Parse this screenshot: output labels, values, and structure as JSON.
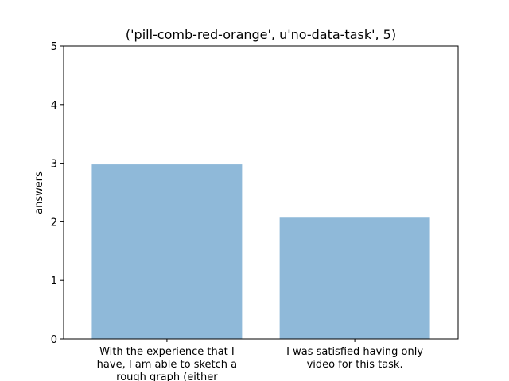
{
  "chart_data": {
    "type": "bar",
    "title": "('pill-comb-red-orange', u'no-data-task', 5)",
    "xlabel": "",
    "ylabel": "answers",
    "ylim": [
      0,
      5
    ],
    "yticks": [
      0,
      1,
      2,
      3,
      4,
      5
    ],
    "grid": false,
    "categories": [
      [
        "With the experience that I",
        "have, I am able to sketch a",
        "rough graph (either"
      ],
      [
        "I was satisfied having only",
        "video for this task."
      ]
    ],
    "values": [
      2.98,
      2.07
    ],
    "bar_color": "#8fb9d9"
  }
}
